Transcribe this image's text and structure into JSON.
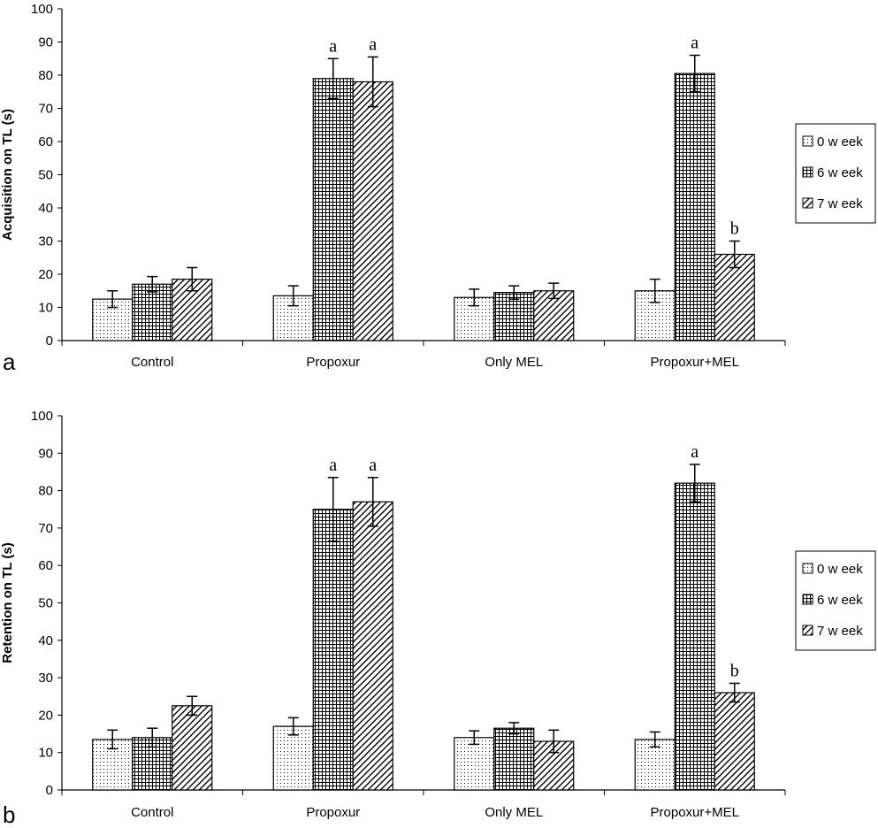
{
  "chart_data": [
    {
      "type": "bar",
      "panel_label": "a",
      "ylabel": "Acquisition on TL (s)",
      "xlabel": "",
      "ylim": [
        0,
        100
      ],
      "yticks": [
        "0",
        "10",
        "20",
        "30",
        "40",
        "50",
        "60",
        "70",
        "80",
        "90",
        "100"
      ],
      "categories": [
        "Control",
        "Propoxur",
        "Only MEL",
        "Propoxur+MEL"
      ],
      "series": [
        {
          "name": "0 w eek",
          "pattern": "dots",
          "values": [
            12.5,
            13.5,
            13,
            15
          ],
          "errors": [
            2.5,
            3,
            2.5,
            3.5
          ],
          "labels": [
            "",
            "",
            "",
            ""
          ]
        },
        {
          "name": "6 w eek",
          "pattern": "grid",
          "values": [
            17,
            79,
            14.5,
            80.5
          ],
          "errors": [
            2.3,
            6,
            2,
            5.5
          ],
          "labels": [
            "",
            "a",
            "",
            "a"
          ]
        },
        {
          "name": "7 w eek",
          "pattern": "hatch",
          "values": [
            18.5,
            78,
            15,
            26
          ],
          "errors": [
            3.5,
            7.5,
            2.3,
            4
          ],
          "labels": [
            "",
            "a",
            "",
            "b"
          ]
        }
      ],
      "legend_position": "right",
      "grid": false
    },
    {
      "type": "bar",
      "panel_label": "b",
      "ylabel": "Retention on TL (s)",
      "xlabel": "",
      "ylim": [
        0,
        100
      ],
      "yticks": [
        "0",
        "10",
        "20",
        "30",
        "40",
        "50",
        "60",
        "70",
        "80",
        "90",
        "100"
      ],
      "categories": [
        "Control",
        "Propoxur",
        "Only MEL",
        "Propoxur+MEL"
      ],
      "series": [
        {
          "name": "0 w eek",
          "pattern": "dots",
          "values": [
            13.5,
            17,
            14,
            13.5
          ],
          "errors": [
            2.5,
            2.3,
            1.8,
            2
          ],
          "labels": [
            "",
            "",
            "",
            ""
          ]
        },
        {
          "name": "6 w eek",
          "pattern": "grid",
          "values": [
            14,
            75,
            16.5,
            82
          ],
          "errors": [
            2.5,
            8.5,
            1.5,
            5
          ],
          "labels": [
            "",
            "a",
            "",
            "a"
          ]
        },
        {
          "name": "7 w eek",
          "pattern": "hatch",
          "values": [
            22.5,
            77,
            13,
            26
          ],
          "errors": [
            2.5,
            6.5,
            3,
            2.5
          ],
          "labels": [
            "",
            "a",
            "",
            "b"
          ]
        }
      ],
      "legend_position": "right",
      "grid": false
    }
  ]
}
